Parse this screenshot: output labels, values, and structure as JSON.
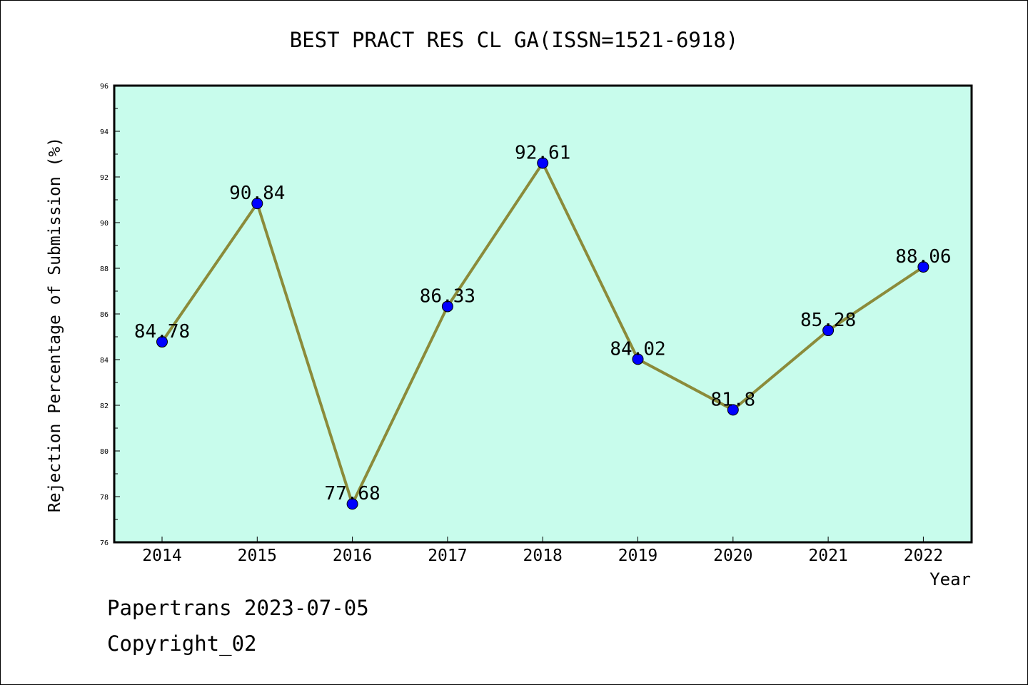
{
  "chart_data": {
    "type": "line",
    "title": "BEST PRACT RES CL GA(ISSN=1521-6918)",
    "xlabel": "Year",
    "ylabel": "Rejection Percentage of Submission (%)",
    "categories": [
      "2014",
      "2015",
      "2016",
      "2017",
      "2018",
      "2019",
      "2020",
      "2021",
      "2022"
    ],
    "series": [
      {
        "values": [
          84.78,
          90.84,
          77.68,
          86.33,
          92.61,
          84.02,
          81.8,
          85.28,
          88.06
        ],
        "labels": [
          "84.78",
          "90.84",
          "77.68",
          "86.33",
          "92.61",
          "84.02",
          "81.8",
          "85.28",
          "88.06"
        ]
      }
    ],
    "ylim": [
      76,
      96
    ],
    "yticks": [
      76,
      78,
      80,
      82,
      84,
      86,
      88,
      90,
      92,
      94,
      96
    ],
    "ytick_labels": [
      "76",
      "78",
      "80",
      "82",
      "84",
      "86",
      "88",
      "90",
      "92",
      "94",
      "96"
    ],
    "grid": false,
    "plot_background": "#c8fcec",
    "line_color": "#8b8b3a",
    "marker_color": "#0000ff"
  },
  "footer": {
    "line1": "Papertrans 2023-07-05",
    "line2": "Copyright_02"
  }
}
